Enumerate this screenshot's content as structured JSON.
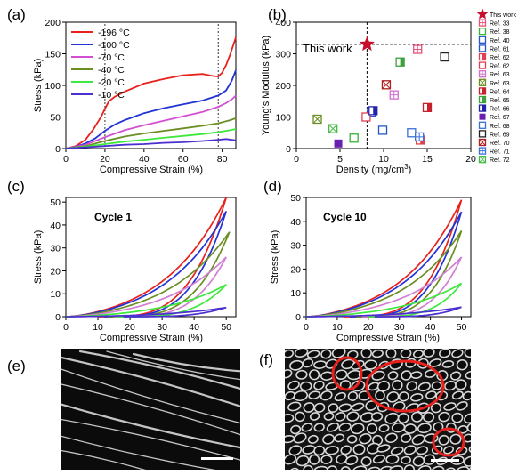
{
  "panel_labels": [
    "(a)",
    "(b)",
    "(c)",
    "(d)",
    "(e)",
    "(f)"
  ],
  "chart_data": [
    {
      "panel": "(a)",
      "type": "line",
      "xlabel": "Compressive Strain (%)",
      "ylabel": "Stress (kPa)",
      "xlim": [
        0,
        87
      ],
      "ylim": [
        0,
        200
      ],
      "xticks": [
        0,
        20,
        40,
        60,
        80
      ],
      "yticks": [
        0,
        50,
        100,
        150,
        200
      ],
      "grid": false,
      "legend_position": "top-left",
      "reference_lines_x": [
        20,
        78
      ],
      "series": [
        {
          "name": "-196 °C",
          "color": "#e8211c",
          "x": [
            0,
            5,
            10,
            14,
            18,
            20,
            22,
            25,
            30,
            40,
            50,
            60,
            70,
            75,
            78,
            80,
            82,
            84,
            87
          ],
          "y": [
            0,
            4,
            14,
            30,
            50,
            63,
            75,
            82,
            90,
            103,
            110,
            116,
            118,
            115,
            114,
            120,
            132,
            148,
            176
          ]
        },
        {
          "name": "-100 °C",
          "color": "#2233d6",
          "x": [
            0,
            5,
            10,
            15,
            20,
            25,
            30,
            40,
            50,
            60,
            70,
            78,
            82,
            85,
            87
          ],
          "y": [
            0,
            3,
            8,
            16,
            28,
            38,
            45,
            56,
            64,
            70,
            76,
            84,
            92,
            108,
            124
          ]
        },
        {
          "name": "-70 °C",
          "color": "#d24fd2",
          "x": [
            0,
            10,
            20,
            30,
            40,
            50,
            60,
            70,
            78,
            82,
            85,
            87
          ],
          "y": [
            0,
            6,
            18,
            29,
            37,
            44,
            51,
            58,
            66,
            72,
            78,
            84
          ]
        },
        {
          "name": "-40 °C",
          "color": "#6b8e23",
          "x": [
            0,
            10,
            20,
            30,
            40,
            50,
            60,
            70,
            78,
            84,
            87
          ],
          "y": [
            0,
            4,
            12,
            19,
            24,
            28,
            32,
            36,
            40,
            45,
            48
          ]
        },
        {
          "name": "-20 °C",
          "color": "#3ee83e",
          "x": [
            0,
            10,
            20,
            30,
            40,
            50,
            60,
            70,
            78,
            84,
            87
          ],
          "y": [
            0,
            3,
            7,
            11,
            14,
            17,
            20,
            23,
            26,
            29,
            31
          ]
        },
        {
          "name": "-10 °C",
          "color": "#4b2fd0",
          "x": [
            0,
            10,
            20,
            30,
            40,
            50,
            60,
            70,
            78,
            82,
            87
          ],
          "y": [
            0,
            2,
            4,
            6,
            7,
            9,
            10,
            12,
            14,
            15,
            13
          ]
        }
      ]
    },
    {
      "panel": "(b)",
      "type": "scatter",
      "xlabel": "Density (mg/cm",
      "xlabel_sup": "3",
      "xlabel_close": ")",
      "ylabel": "Young's Modulus (kPa)",
      "xlim": [
        0,
        20
      ],
      "ylim": [
        0,
        400
      ],
      "xticks": [
        0,
        5,
        10,
        15,
        20
      ],
      "yticks": [
        0,
        100,
        200,
        300,
        400
      ],
      "annotation": "This work",
      "reference_lines": {
        "x": 8.1,
        "y": 330
      },
      "legend_position": "outside-right",
      "series": [
        {
          "name": "This work",
          "color": "#c8102e",
          "marker": "star",
          "x": 8.1,
          "y": 330
        },
        {
          "name": "Ref. 33",
          "color": "#e8507a",
          "marker": "square-open-cross",
          "x": 13.9,
          "y": 314
        },
        {
          "name": "Ref. 38",
          "color": "#36b336",
          "marker": "square-open",
          "x": 6.6,
          "y": 33
        },
        {
          "name": "Ref. 40",
          "color": "#2255cc",
          "marker": "square-open",
          "x": 8.6,
          "y": 115
        },
        {
          "name": "Ref. 61",
          "color": "#2255cc",
          "marker": "square-open",
          "x": 9.9,
          "y": 58
        },
        {
          "name": "Ref. 62",
          "color": "#e04050",
          "marker": "square-half",
          "x": 14.2,
          "y": 27
        },
        {
          "name": "Ref. 62",
          "color": "#e04050",
          "marker": "square-open",
          "x": 8,
          "y": 100
        },
        {
          "name": "Ref. 63",
          "color": "#d070d0",
          "marker": "square-open-cross",
          "x": 11.2,
          "y": 170
        },
        {
          "name": "Ref. 63",
          "color": "#6b8e23",
          "marker": "square-open-x",
          "x": 2.4,
          "y": 93
        },
        {
          "name": "Ref. 64",
          "color": "#c8202e",
          "marker": "square-half",
          "x": 15,
          "y": 130
        },
        {
          "name": "Ref. 65",
          "color": "#3ca03c",
          "marker": "square-half",
          "x": 11.9,
          "y": 274
        },
        {
          "name": "Ref. 66",
          "color": "#2222aa",
          "marker": "square-half",
          "x": 8.8,
          "y": 120
        },
        {
          "name": "Ref. 67",
          "color": "#6a1fb0",
          "marker": "square-filled",
          "x": 4.8,
          "y": 16
        },
        {
          "name": "Ref. 68",
          "color": "#3a6fd8",
          "marker": "square-open",
          "x": 13.2,
          "y": 50
        },
        {
          "name": "Ref. 69",
          "color": "#222222",
          "marker": "square-open",
          "x": 17,
          "y": 290
        },
        {
          "name": "Ref. 70",
          "color": "#b02020",
          "marker": "square-open-x",
          "x": 10.3,
          "y": 202
        },
        {
          "name": "Ref. 71",
          "color": "#3a6fd8",
          "marker": "square-open-cross",
          "x": 14.1,
          "y": 37
        },
        {
          "name": "Ref. 72",
          "color": "#44bb44",
          "marker": "square-open-x",
          "x": 4.2,
          "y": 63
        }
      ]
    },
    {
      "panel": "(c)",
      "type": "line",
      "title": "Cycle 1",
      "xlabel": "Compressive Strain (%)",
      "ylabel": "Stress (kPa)",
      "xlim": [
        0,
        53
      ],
      "ylim": [
        0,
        52
      ],
      "xticks": [
        0,
        10,
        20,
        30,
        40,
        50
      ],
      "yticks": [
        0,
        10,
        20,
        30,
        40,
        50
      ],
      "loops": [
        {
          "color": "#e8211c",
          "max_strain": 50,
          "max_stress": 52,
          "onset": 10
        },
        {
          "color": "#2233d6",
          "max_strain": 50,
          "max_stress": 46,
          "onset": 12
        },
        {
          "color": "#6b8e23",
          "max_strain": 51,
          "max_stress": 37,
          "onset": 13
        },
        {
          "color": "#d27ed2",
          "max_strain": 50,
          "max_stress": 26,
          "onset": 15
        },
        {
          "color": "#3ee83e",
          "max_strain": 50,
          "max_stress": 14,
          "onset": 16
        },
        {
          "color": "#4b2fd0",
          "max_strain": 50,
          "max_stress": 4,
          "onset": 18
        }
      ]
    },
    {
      "panel": "(d)",
      "type": "line",
      "title": "Cycle 10",
      "xlabel": "Compressive Strain (%)",
      "ylabel": "Stress (kPa)",
      "xlim": [
        0,
        53
      ],
      "ylim": [
        0,
        50
      ],
      "xticks": [
        0,
        10,
        20,
        30,
        40,
        50
      ],
      "yticks": [
        0,
        10,
        20,
        30,
        40,
        50
      ],
      "loops": [
        {
          "color": "#e8211c",
          "max_strain": 50,
          "max_stress": 49,
          "onset": 12
        },
        {
          "color": "#2233d6",
          "max_strain": 50,
          "max_stress": 44,
          "onset": 14
        },
        {
          "color": "#6b8e23",
          "max_strain": 50,
          "max_stress": 36,
          "onset": 16
        },
        {
          "color": "#d27ed2",
          "max_strain": 50,
          "max_stress": 25,
          "onset": 18
        },
        {
          "color": "#3ee83e",
          "max_strain": 50,
          "max_stress": 14,
          "onset": 20
        },
        {
          "color": "#4b2fd0",
          "max_strain": 50,
          "max_stress": 4,
          "onset": 22
        }
      ]
    }
  ],
  "colors": {
    "highlight_circle": "#e8211c",
    "scale_bar": "#ffffff"
  }
}
